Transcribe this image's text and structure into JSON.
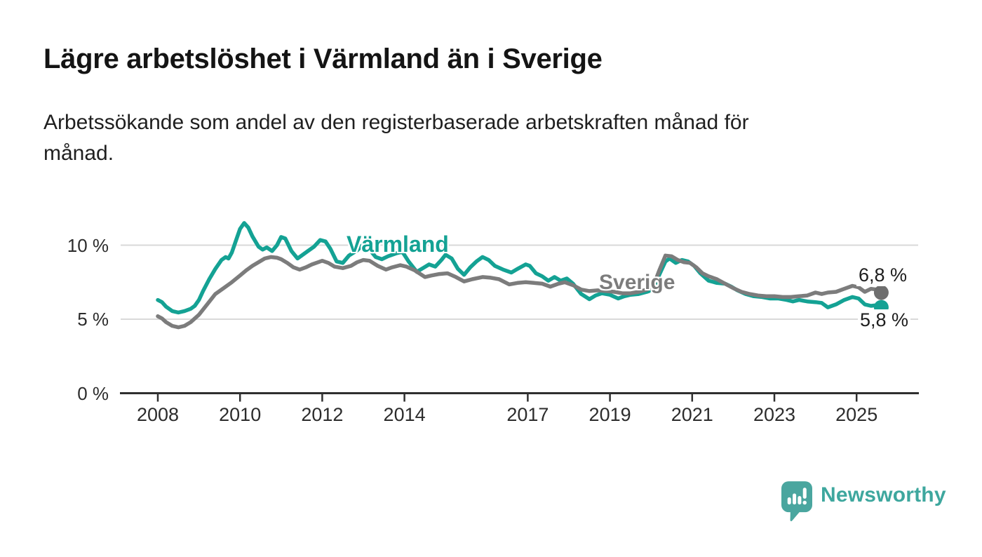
{
  "header": {
    "title": "Lägre arbetslöshet i Värmland än i Sverige",
    "subtitle_lines": [
      "Arbetssökande som andel av den registerbaserade arbetskraften månad för",
      "månad."
    ]
  },
  "chart_data": {
    "type": "line",
    "title": "Lägre arbetslöshet i Värmland än i Sverige",
    "xlabel": "",
    "ylabel": "",
    "grid": "horizontal",
    "legend_position": "inline-labels",
    "xlim": [
      2007.55,
      2026.5
    ],
    "ylim": [
      0,
      12
    ],
    "x_ticks": [
      2008,
      2010,
      2012,
      2014,
      2017,
      2019,
      2021,
      2023,
      2025
    ],
    "y_ticks": [
      {
        "value": 0,
        "label": "0 %"
      },
      {
        "value": 5,
        "label": "5 %"
      },
      {
        "value": 10,
        "label": "10 %"
      }
    ],
    "series": [
      {
        "name": "Värmland",
        "color": "#14a294",
        "end_label": "5,8 %",
        "end_value": 5.8,
        "end_dot": true,
        "points": [
          [
            2008.0,
            6.3
          ],
          [
            2008.1,
            6.15
          ],
          [
            2008.2,
            5.85
          ],
          [
            2008.35,
            5.55
          ],
          [
            2008.5,
            5.45
          ],
          [
            2008.65,
            5.55
          ],
          [
            2008.8,
            5.7
          ],
          [
            2008.9,
            5.9
          ],
          [
            2009.0,
            6.3
          ],
          [
            2009.1,
            6.9
          ],
          [
            2009.25,
            7.7
          ],
          [
            2009.4,
            8.4
          ],
          [
            2009.55,
            9.0
          ],
          [
            2009.65,
            9.2
          ],
          [
            2009.72,
            9.1
          ],
          [
            2009.8,
            9.5
          ],
          [
            2009.9,
            10.3
          ],
          [
            2010.0,
            11.1
          ],
          [
            2010.1,
            11.5
          ],
          [
            2010.2,
            11.2
          ],
          [
            2010.3,
            10.6
          ],
          [
            2010.45,
            9.9
          ],
          [
            2010.55,
            9.7
          ],
          [
            2010.65,
            9.85
          ],
          [
            2010.78,
            9.6
          ],
          [
            2010.9,
            10.0
          ],
          [
            2011.0,
            10.55
          ],
          [
            2011.1,
            10.45
          ],
          [
            2011.25,
            9.6
          ],
          [
            2011.4,
            9.1
          ],
          [
            2011.5,
            9.3
          ],
          [
            2011.65,
            9.6
          ],
          [
            2011.8,
            9.9
          ],
          [
            2011.95,
            10.35
          ],
          [
            2012.08,
            10.25
          ],
          [
            2012.2,
            9.75
          ],
          [
            2012.35,
            8.9
          ],
          [
            2012.5,
            8.8
          ],
          [
            2012.65,
            9.3
          ],
          [
            2012.85,
            9.65
          ],
          [
            2013.0,
            10.05
          ],
          [
            2013.15,
            9.7
          ],
          [
            2013.3,
            9.2
          ],
          [
            2013.45,
            9.05
          ],
          [
            2013.6,
            9.25
          ],
          [
            2013.8,
            9.45
          ],
          [
            2013.95,
            9.55
          ],
          [
            2014.1,
            8.9
          ],
          [
            2014.3,
            8.2
          ],
          [
            2014.45,
            8.45
          ],
          [
            2014.6,
            8.7
          ],
          [
            2014.75,
            8.55
          ],
          [
            2014.9,
            9.0
          ],
          [
            2015.0,
            9.35
          ],
          [
            2015.15,
            9.1
          ],
          [
            2015.3,
            8.4
          ],
          [
            2015.45,
            8.0
          ],
          [
            2015.6,
            8.5
          ],
          [
            2015.75,
            8.9
          ],
          [
            2015.9,
            9.2
          ],
          [
            2016.05,
            9.0
          ],
          [
            2016.2,
            8.6
          ],
          [
            2016.4,
            8.35
          ],
          [
            2016.6,
            8.15
          ],
          [
            2016.75,
            8.4
          ],
          [
            2016.95,
            8.7
          ],
          [
            2017.05,
            8.6
          ],
          [
            2017.2,
            8.1
          ],
          [
            2017.35,
            7.9
          ],
          [
            2017.5,
            7.6
          ],
          [
            2017.65,
            7.85
          ],
          [
            2017.8,
            7.6
          ],
          [
            2017.95,
            7.75
          ],
          [
            2018.1,
            7.4
          ],
          [
            2018.3,
            6.7
          ],
          [
            2018.5,
            6.35
          ],
          [
            2018.65,
            6.6
          ],
          [
            2018.8,
            6.75
          ],
          [
            2019.0,
            6.65
          ],
          [
            2019.2,
            6.4
          ],
          [
            2019.35,
            6.55
          ],
          [
            2019.5,
            6.65
          ],
          [
            2019.7,
            6.7
          ],
          [
            2019.9,
            6.85
          ],
          [
            2020.05,
            7.0
          ],
          [
            2020.2,
            8.0
          ],
          [
            2020.35,
            8.9
          ],
          [
            2020.45,
            9.1
          ],
          [
            2020.6,
            8.8
          ],
          [
            2020.75,
            9.0
          ],
          [
            2020.9,
            8.9
          ],
          [
            2021.05,
            8.6
          ],
          [
            2021.2,
            8.1
          ],
          [
            2021.4,
            7.6
          ],
          [
            2021.6,
            7.45
          ],
          [
            2021.8,
            7.4
          ],
          [
            2021.95,
            7.2
          ],
          [
            2022.1,
            6.95
          ],
          [
            2022.3,
            6.7
          ],
          [
            2022.5,
            6.55
          ],
          [
            2022.7,
            6.5
          ],
          [
            2022.9,
            6.4
          ],
          [
            2023.1,
            6.4
          ],
          [
            2023.3,
            6.3
          ],
          [
            2023.45,
            6.2
          ],
          [
            2023.6,
            6.3
          ],
          [
            2023.8,
            6.2
          ],
          [
            2024.0,
            6.15
          ],
          [
            2024.15,
            6.1
          ],
          [
            2024.3,
            5.8
          ],
          [
            2024.5,
            6.0
          ],
          [
            2024.7,
            6.3
          ],
          [
            2024.9,
            6.5
          ],
          [
            2025.05,
            6.4
          ],
          [
            2025.2,
            6.0
          ],
          [
            2025.35,
            5.9
          ],
          [
            2025.5,
            5.95
          ],
          [
            2025.6,
            5.8
          ]
        ]
      },
      {
        "name": "Sverige",
        "color": "#7c7c7c",
        "dot_color": "#6e6e6e",
        "end_label": "6,8 %",
        "end_value": 6.8,
        "end_dot": true,
        "points": [
          [
            2008.0,
            5.2
          ],
          [
            2008.1,
            5.05
          ],
          [
            2008.2,
            4.8
          ],
          [
            2008.35,
            4.55
          ],
          [
            2008.5,
            4.45
          ],
          [
            2008.65,
            4.55
          ],
          [
            2008.8,
            4.8
          ],
          [
            2009.0,
            5.3
          ],
          [
            2009.2,
            6.0
          ],
          [
            2009.4,
            6.7
          ],
          [
            2009.6,
            7.1
          ],
          [
            2009.8,
            7.5
          ],
          [
            2010.0,
            7.95
          ],
          [
            2010.15,
            8.3
          ],
          [
            2010.3,
            8.6
          ],
          [
            2010.45,
            8.85
          ],
          [
            2010.6,
            9.1
          ],
          [
            2010.75,
            9.2
          ],
          [
            2010.9,
            9.15
          ],
          [
            2011.0,
            9.05
          ],
          [
            2011.15,
            8.8
          ],
          [
            2011.3,
            8.5
          ],
          [
            2011.45,
            8.35
          ],
          [
            2011.6,
            8.5
          ],
          [
            2011.75,
            8.7
          ],
          [
            2011.9,
            8.85
          ],
          [
            2012.0,
            8.95
          ],
          [
            2012.15,
            8.8
          ],
          [
            2012.3,
            8.55
          ],
          [
            2012.5,
            8.45
          ],
          [
            2012.7,
            8.6
          ],
          [
            2012.85,
            8.85
          ],
          [
            2013.0,
            9.0
          ],
          [
            2013.15,
            8.95
          ],
          [
            2013.35,
            8.6
          ],
          [
            2013.55,
            8.35
          ],
          [
            2013.7,
            8.5
          ],
          [
            2013.9,
            8.65
          ],
          [
            2014.05,
            8.55
          ],
          [
            2014.25,
            8.3
          ],
          [
            2014.5,
            7.85
          ],
          [
            2014.65,
            7.95
          ],
          [
            2014.85,
            8.05
          ],
          [
            2015.05,
            8.1
          ],
          [
            2015.25,
            7.85
          ],
          [
            2015.45,
            7.55
          ],
          [
            2015.65,
            7.7
          ],
          [
            2015.9,
            7.85
          ],
          [
            2016.1,
            7.8
          ],
          [
            2016.3,
            7.7
          ],
          [
            2016.55,
            7.35
          ],
          [
            2016.75,
            7.45
          ],
          [
            2016.95,
            7.5
          ],
          [
            2017.15,
            7.45
          ],
          [
            2017.35,
            7.4
          ],
          [
            2017.55,
            7.2
          ],
          [
            2017.75,
            7.4
          ],
          [
            2017.9,
            7.5
          ],
          [
            2018.1,
            7.3
          ],
          [
            2018.3,
            7.0
          ],
          [
            2018.5,
            6.9
          ],
          [
            2018.7,
            6.95
          ],
          [
            2018.9,
            6.9
          ],
          [
            2019.1,
            6.85
          ],
          [
            2019.3,
            6.75
          ],
          [
            2019.5,
            6.75
          ],
          [
            2019.7,
            6.85
          ],
          [
            2019.9,
            7.0
          ],
          [
            2020.05,
            7.2
          ],
          [
            2020.2,
            8.3
          ],
          [
            2020.35,
            9.3
          ],
          [
            2020.5,
            9.25
          ],
          [
            2020.65,
            9.0
          ],
          [
            2020.8,
            8.85
          ],
          [
            2020.95,
            8.8
          ],
          [
            2021.1,
            8.5
          ],
          [
            2021.25,
            8.1
          ],
          [
            2021.4,
            7.9
          ],
          [
            2021.6,
            7.7
          ],
          [
            2021.8,
            7.4
          ],
          [
            2022.0,
            7.1
          ],
          [
            2022.2,
            6.85
          ],
          [
            2022.4,
            6.7
          ],
          [
            2022.6,
            6.6
          ],
          [
            2022.8,
            6.55
          ],
          [
            2023.0,
            6.55
          ],
          [
            2023.2,
            6.5
          ],
          [
            2023.4,
            6.5
          ],
          [
            2023.6,
            6.55
          ],
          [
            2023.8,
            6.6
          ],
          [
            2024.0,
            6.8
          ],
          [
            2024.15,
            6.7
          ],
          [
            2024.3,
            6.8
          ],
          [
            2024.5,
            6.85
          ],
          [
            2024.7,
            7.05
          ],
          [
            2024.9,
            7.25
          ],
          [
            2025.05,
            7.15
          ],
          [
            2025.2,
            6.85
          ],
          [
            2025.35,
            7.05
          ],
          [
            2025.5,
            7.0
          ],
          [
            2025.6,
            6.8
          ]
        ]
      }
    ]
  },
  "footer": {
    "brand": "Newsworthy",
    "brand_color": "#3ea79e",
    "logo_icon": "newsworthy-speech-bubble-bar-chart-icon"
  },
  "style_colors": {
    "background": "#ffffff",
    "gridline": "#d9d9d9",
    "axis": "#2f2f2f",
    "title_text": "#141414",
    "tick_text": "#2c2c2c"
  }
}
